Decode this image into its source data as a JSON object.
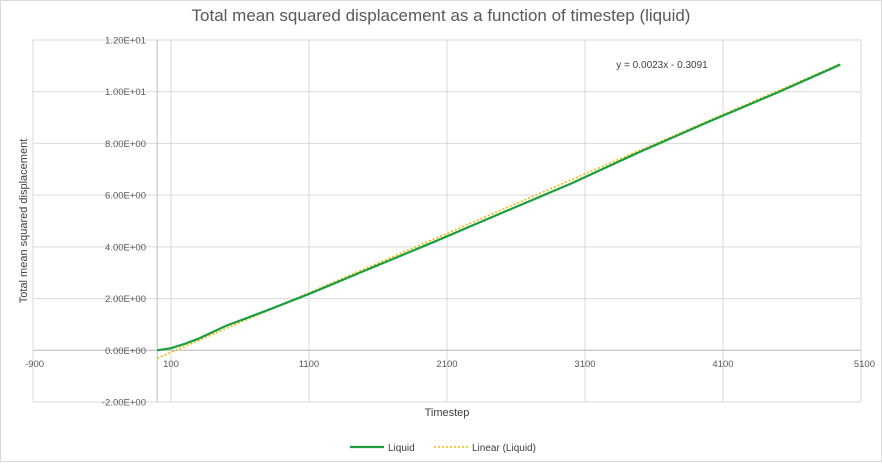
{
  "chart_data": {
    "type": "scatter",
    "title": "Total mean squared displacement as a function of timestep (liquid)",
    "xlabel": "Timestep",
    "ylabel": "Total mean squared displacement",
    "xlim": [
      -900,
      5100
    ],
    "ylim": [
      -2.0,
      12.0
    ],
    "x_ticks": [
      -900,
      100,
      1100,
      2100,
      3100,
      4100,
      5100
    ],
    "x_tick_labels": [
      "-900",
      "100",
      "1100",
      "2100",
      "3100",
      "4100",
      "5100"
    ],
    "y_ticks": [
      -2,
      0,
      2,
      4,
      6,
      8,
      10,
      12
    ],
    "y_tick_labels": [
      "-2.00E+00",
      "0.00E+00",
      "2.00E+00",
      "4.00E+00",
      "6.00E+00",
      "8.00E+00",
      "1.00E+01",
      "1.20E+01"
    ],
    "grid": true,
    "legend_position": "bottom",
    "series": [
      {
        "name": "Liquid",
        "color": "#1a9e3f",
        "style": "solid",
        "x": [
          0,
          100,
          200,
          300,
          500,
          800,
          1100,
          1500,
          2000,
          2500,
          3000,
          3500,
          4000,
          4500,
          4950
        ],
        "y": [
          0.0,
          0.08,
          0.25,
          0.45,
          0.95,
          1.55,
          2.18,
          3.07,
          4.18,
          5.32,
          6.45,
          7.68,
          8.85,
          9.98,
          11.05
        ]
      },
      {
        "name": "Linear (Liquid)",
        "color": "#f2b705",
        "style": "dotted",
        "trendline": {
          "slope": 0.0023,
          "intercept": -0.3091
        },
        "x": [
          0,
          4950
        ],
        "y": [
          -0.3091,
          11.0759
        ]
      }
    ],
    "annotations": [
      {
        "text": "y = 0.0023x - 0.3091",
        "x": 3900,
        "y": 11.2
      }
    ]
  }
}
